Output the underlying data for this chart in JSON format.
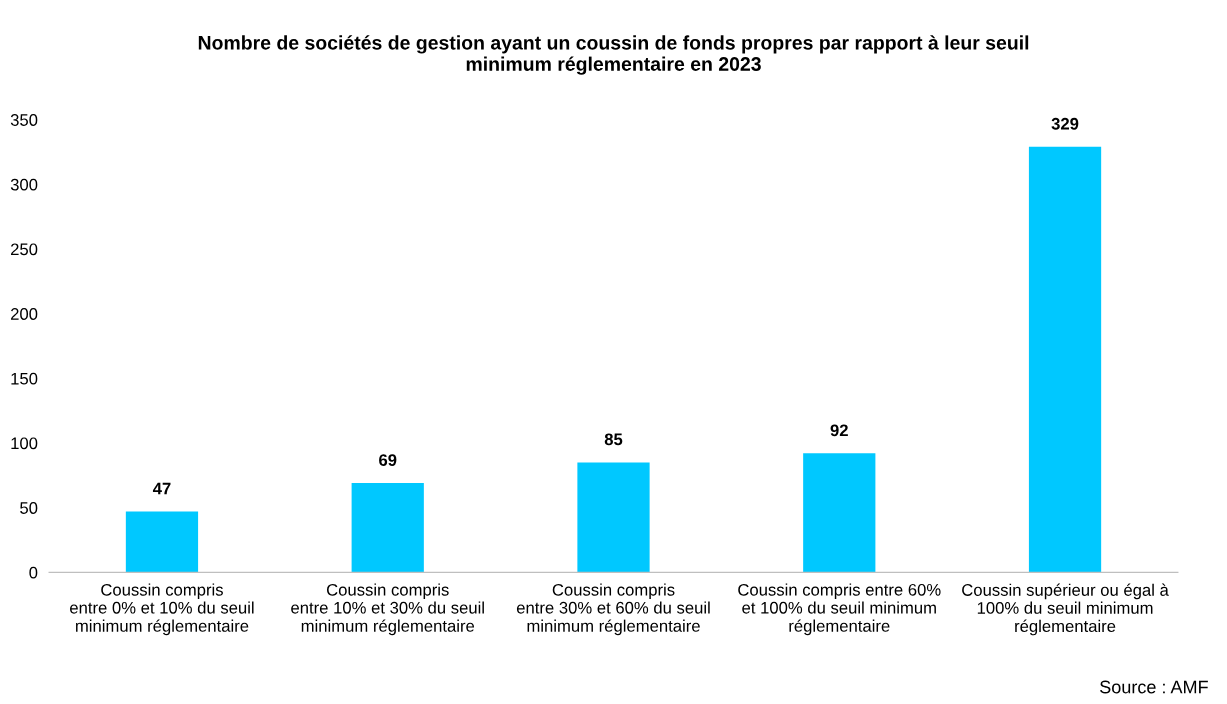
{
  "chart_data": {
    "type": "bar",
    "title": "Nombre de sociétés de gestion ayant un coussin de fonds propres par rapport à leur seuil\nminimum réglementaire en 2023",
    "categories": [
      "Coussin compris\nentre 0% et 10% du seuil\nminimum réglementaire",
      "Coussin compris\nentre 10% et 30% du seuil\nminimum réglementaire",
      "Coussin compris\nentre 30% et 60% du seuil\nminimum réglementaire",
      "Coussin compris entre 60%\net 100% du seuil minimum\nréglementaire",
      "Coussin supérieur ou égal à\n100% du seuil minimum\nréglementaire"
    ],
    "values": [
      47,
      69,
      85,
      92,
      329
    ],
    "color": "#00c8ff",
    "data_labels": true,
    "ylim": [
      0,
      350
    ],
    "yticks": [
      0,
      50,
      100,
      150,
      200,
      250,
      300,
      350
    ],
    "grid": false,
    "legend": false,
    "annotations": [
      "Source : AMF"
    ]
  }
}
